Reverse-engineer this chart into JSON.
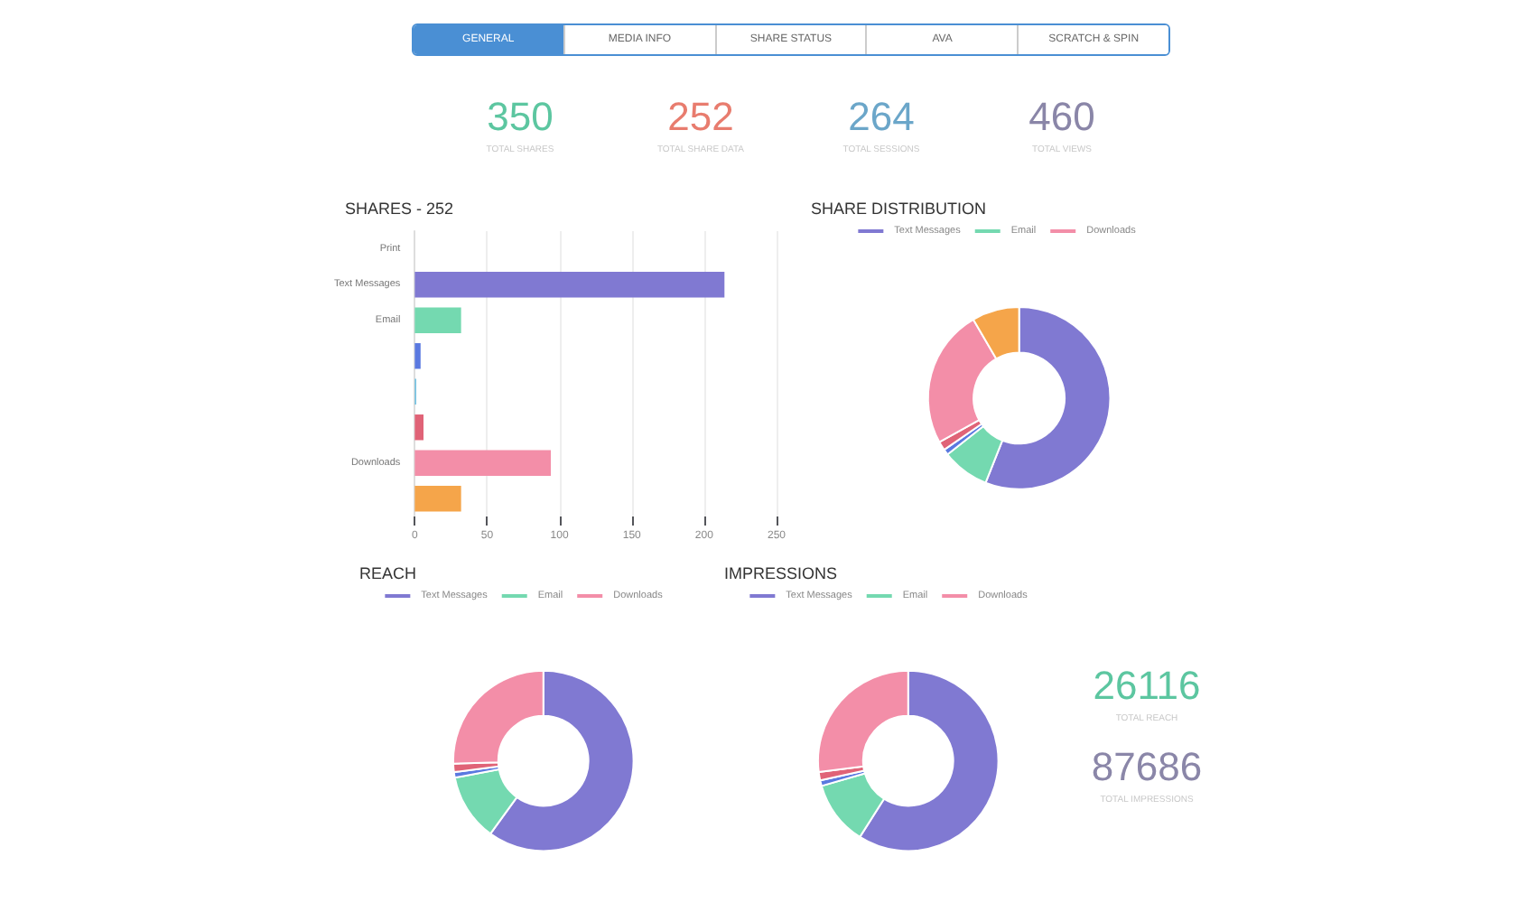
{
  "chart_data": [
    {
      "type": "other",
      "categories": [
        "GENERAL",
        "MEDIA INFO",
        "SHARE STATUS",
        "AVA",
        "SCRATCH & SPIN"
      ]
    },
    {
      "type": "other",
      "annotations": [
        "350",
        "TOTAL SHARES",
        "252",
        "TOTAL SHARE DATA",
        "264",
        "TOTAL SESSIONS",
        "460",
        "TOTAL VIEWS"
      ],
      "colors": [
        "#5cc6a0",
        "#e87c6e",
        "#6ba6c9",
        "#8a86a8"
      ]
    },
    {
      "type": "bar",
      "orientation": "horizontal",
      "title": "SHARES - 252",
      "categories": [
        "Print",
        "Text Messages",
        "Email",
        null,
        null,
        null,
        "Downloads",
        null
      ],
      "values": [
        0,
        214,
        32,
        4,
        1,
        6,
        94,
        32
      ],
      "colors": [
        "#f5a54a",
        "#8079d2",
        "#74d9b0",
        "#5a79e0",
        "#6fc0e0",
        "#e06377",
        "#f38ea8",
        "#f5a54a"
      ],
      "xlim": [
        0,
        250
      ],
      "xticks": [
        0,
        50,
        100,
        150,
        200,
        250
      ],
      "grid": "x"
    },
    {
      "type": "donut",
      "title": "SHARE DISTRIBUTION",
      "categories": [
        "Text Messages",
        "Email",
        null,
        null,
        "Downloads",
        null
      ],
      "values": [
        56.0,
        8.4,
        1.0,
        1.6,
        24.6,
        8.4
      ],
      "colors": [
        "#8079d2",
        "#74d9b0",
        "#5a79e0",
        "#e06377",
        "#f38ea8",
        "#f5a54a"
      ],
      "legend": "top"
    },
    {
      "type": "donut",
      "title": "REACH",
      "categories": [
        "Text Messages",
        "Email",
        null,
        null,
        "Downloads"
      ],
      "values": [
        60,
        12,
        1,
        1.5,
        25.5
      ],
      "colors": [
        "#8079d2",
        "#74d9b0",
        "#5a79e0",
        "#e06377",
        "#f38ea8"
      ],
      "legend": "top"
    },
    {
      "type": "donut",
      "title": "IMPRESSIONS",
      "categories": [
        "Text Messages",
        "Email",
        null,
        null,
        "Downloads"
      ],
      "values": [
        59,
        11.5,
        1,
        1.5,
        27
      ],
      "colors": [
        "#8079d2",
        "#74d9b0",
        "#5a79e0",
        "#e06377",
        "#f38ea8"
      ],
      "legend": "top"
    },
    {
      "type": "other",
      "annotations": [
        "26116",
        "TOTAL REACH",
        "87686",
        "TOTAL IMPRESSIONS"
      ],
      "colors": [
        "#5cc6a0",
        "#8a86a8"
      ]
    }
  ]
}
